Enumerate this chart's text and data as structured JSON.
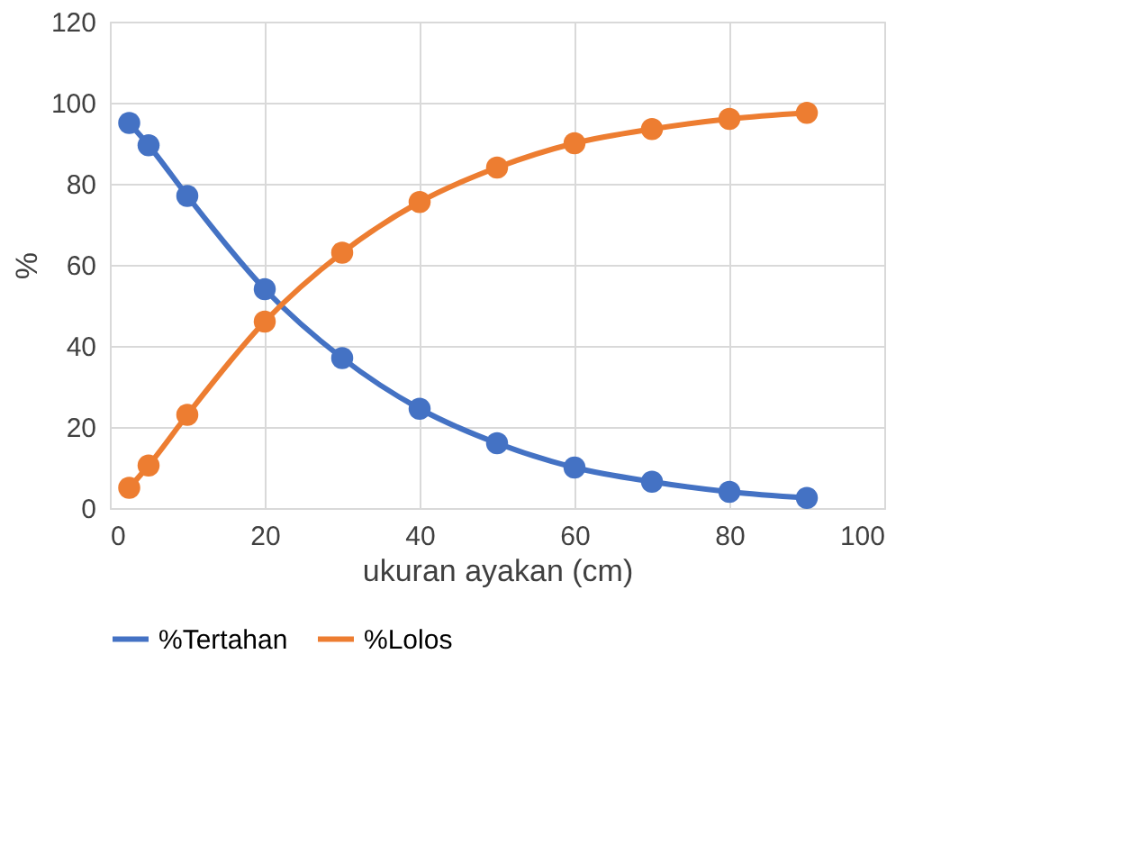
{
  "chart_data": {
    "type": "line",
    "xlabel": "ukuran ayakan (cm)",
    "ylabel": "%",
    "x": [
      2.5,
      5,
      10,
      20,
      30,
      40,
      50,
      60,
      70,
      80,
      90
    ],
    "series": [
      {
        "name": "%Tertahan",
        "color": "#4472c4",
        "values": [
          95,
          89.5,
          77,
          54,
          37,
          24.5,
          16,
          10,
          6.5,
          4,
          2.5
        ]
      },
      {
        "name": "%Lolos",
        "color": "#ed7d31",
        "values": [
          5,
          10.5,
          23,
          46,
          63,
          75.5,
          84,
          90,
          93.5,
          96,
          97.5
        ]
      }
    ],
    "xlim": [
      0,
      100
    ],
    "xticks": [
      0,
      20,
      40,
      60,
      80,
      100
    ],
    "ylim": [
      0,
      120
    ],
    "yticks": [
      0,
      20,
      40,
      60,
      80,
      100,
      120
    ],
    "grid": true,
    "legend": "bottom",
    "marker": "circle",
    "line_style": "solid"
  }
}
